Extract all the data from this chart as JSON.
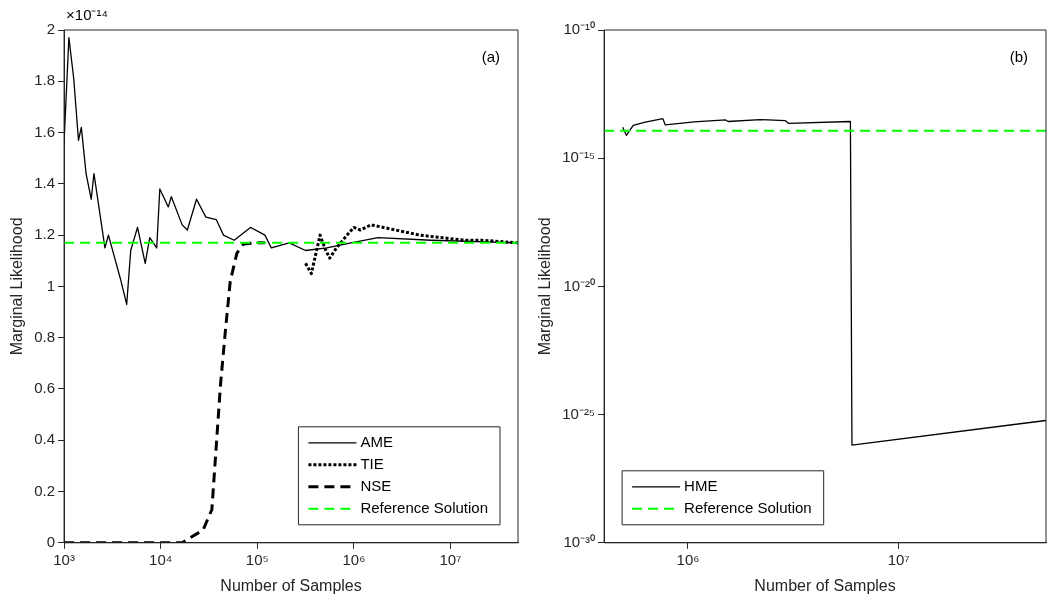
{
  "chart_data": [
    {
      "type": "line",
      "xlabel": "Number of Samples",
      "ylabel": "Marginal Likelihood",
      "log": "x",
      "grid": false,
      "legend": "bottom right",
      "xlim": [
        1000,
        50000000
      ],
      "ylim": [
        0,
        2
      ],
      "xticks": [
        {
          "value": 1000,
          "label": "10³"
        },
        {
          "value": 10000,
          "label": "10⁴"
        },
        {
          "value": 100000,
          "label": "10⁵"
        },
        {
          "value": 1000000,
          "label": "10⁶"
        },
        {
          "value": 10000000,
          "label": "10⁷"
        }
      ],
      "yticks": [
        0,
        0.2,
        0.4,
        0.6,
        0.8,
        1,
        1.2,
        1.4,
        1.6,
        1.8,
        2
      ],
      "annotations": [
        "(a)",
        "×10⁻¹⁴"
      ],
      "series": [
        {
          "name": "AME",
          "color": "#000000",
          "line_style": "solid",
          "x": [
            1000,
            1122,
            1260,
            1410,
            1510,
            1690,
            1910,
            2040,
            2650,
            2880,
            3830,
            4450,
            4900,
            5760,
            6920,
            7710,
            9100,
            9800,
            12000,
            12900,
            16700,
            18900,
            23500,
            29400,
            37700,
            44700,
            57700,
            85000,
            120000,
            140000,
            214000,
            316000,
            525000,
            933000,
            1780000,
            6300000,
            50000000
          ],
          "values": [
            1.56,
            1.97,
            1.81,
            1.57,
            1.62,
            1.44,
            1.34,
            1.44,
            1.15,
            1.2,
            1.03,
            0.93,
            1.14,
            1.23,
            1.09,
            1.19,
            1.15,
            1.38,
            1.31,
            1.35,
            1.24,
            1.22,
            1.34,
            1.27,
            1.26,
            1.2,
            1.18,
            1.23,
            1.2,
            1.15,
            1.17,
            1.14,
            1.15,
            1.17,
            1.19,
            1.18,
            1.17
          ]
        },
        {
          "name": "TIE",
          "color": "#000000",
          "line_style": "dotted",
          "x": [
            316000,
            363000,
            447000,
            500000,
            562000,
            660000,
            850000,
            1000000,
            1170000,
            1510000,
            2700000,
            4800000,
            14000000,
            21000000,
            50000000
          ],
          "values": [
            1.09,
            1.05,
            1.2,
            1.15,
            1.11,
            1.15,
            1.2,
            1.23,
            1.22,
            1.24,
            1.22,
            1.2,
            1.18,
            1.18,
            1.17
          ]
        },
        {
          "name": "NSE",
          "color": "#000000",
          "line_style": "dashed",
          "x": [
            1000,
            16600,
            27500,
            33900,
            38000,
            41700,
            46600,
            52500,
            61600,
            72000,
            100000,
            120000
          ],
          "values": [
            0,
            0,
            0.05,
            0.13,
            0.4,
            0.62,
            0.82,
            1.02,
            1.13,
            1.165,
            1.17,
            1.17
          ]
        }
      ],
      "ref_lines": [
        {
          "axis": "y",
          "value": 1.17,
          "label": "Reference Solution",
          "color": "#00ff00",
          "line_style": "dashed"
        }
      ]
    },
    {
      "type": "line",
      "xlabel": "Number of Samples",
      "ylabel": "Marginal Likelihood",
      "log": "xy",
      "grid": false,
      "legend": "bottom left",
      "xlim": [
        400000,
        50000000
      ],
      "ylim": [
        1e-30,
        1e-10
      ],
      "xticks": [
        {
          "value": 1000000,
          "label": "10⁶"
        },
        {
          "value": 10000000,
          "label": "10⁷"
        }
      ],
      "yticks": [
        {
          "value": 1e-30,
          "label": "10⁻³⁰"
        },
        {
          "value": 1e-25,
          "label": "10⁻²⁵"
        },
        {
          "value": 1e-20,
          "label": "10⁻²⁰"
        },
        {
          "value": 1e-15,
          "label": "10⁻¹⁵"
        },
        {
          "value": 1e-10,
          "label": "10⁻¹⁰"
        }
      ],
      "annotations": [
        "(b)"
      ],
      "series": [
        {
          "name": "HME",
          "color": "#000000",
          "line_style": "solid",
          "x": [
            490000,
            510000,
            550000,
            620000,
            760000,
            780000,
            1070000,
            1510000,
            1550000,
            2200000,
            2900000,
            3000000,
            5900000,
            6000000,
            50000000
          ],
          "values": [
            1.6e-14,
            7.8e-15,
            1.9e-14,
            2.5e-14,
            3.5e-14,
            2e-14,
            2.6e-14,
            3.1e-14,
            2.7e-14,
            3.2e-14,
            2.9e-14,
            2.3e-14,
            2.7e-14,
            6.5e-27,
            5.9e-26
          ]
        }
      ],
      "ref_lines": [
        {
          "axis": "y",
          "value": 1.17e-14,
          "label": "Reference Solution",
          "color": "#00ff00",
          "line_style": "dashed"
        }
      ]
    }
  ]
}
